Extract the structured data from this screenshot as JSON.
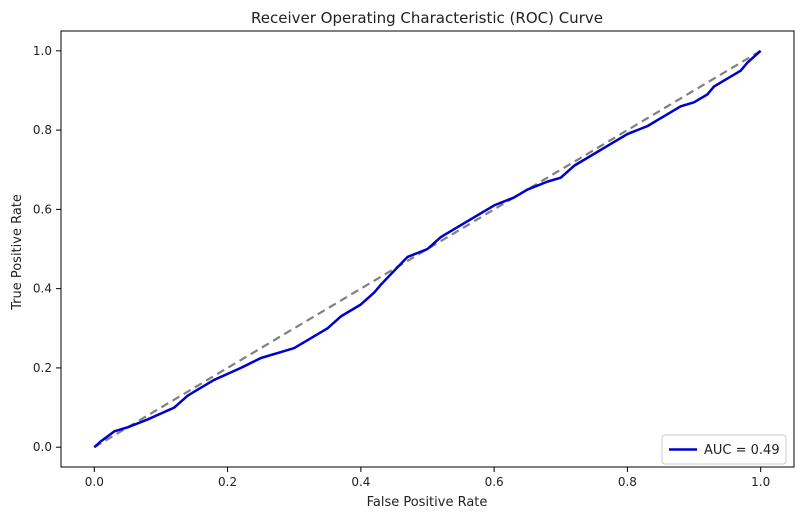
{
  "chart_data": {
    "type": "line",
    "title": "Receiver Operating Characteristic (ROC) Curve",
    "xlabel": "False Positive Rate",
    "ylabel": "True Positive Rate",
    "xlim": [
      -0.05,
      1.05
    ],
    "ylim": [
      -0.05,
      1.05
    ],
    "xticks": [
      "0.0",
      "0.2",
      "0.4",
      "0.6",
      "0.8",
      "1.0"
    ],
    "yticks": [
      "0.0",
      "0.2",
      "0.4",
      "0.6",
      "0.8",
      "1.0"
    ],
    "grid": false,
    "legend_position": "bottom-right",
    "series": [
      {
        "name": "AUC = 0.49",
        "color": "#0000cc",
        "style": "solid",
        "x": [
          0.0,
          0.01,
          0.03,
          0.05,
          0.08,
          0.1,
          0.12,
          0.14,
          0.16,
          0.18,
          0.2,
          0.22,
          0.25,
          0.28,
          0.3,
          0.32,
          0.35,
          0.37,
          0.4,
          0.42,
          0.43,
          0.45,
          0.47,
          0.5,
          0.52,
          0.55,
          0.58,
          0.6,
          0.63,
          0.65,
          0.68,
          0.7,
          0.72,
          0.75,
          0.78,
          0.8,
          0.83,
          0.85,
          0.88,
          0.9,
          0.92,
          0.93,
          0.95,
          0.97,
          0.98,
          1.0
        ],
        "y": [
          0.0,
          0.015,
          0.04,
          0.05,
          0.07,
          0.085,
          0.1,
          0.13,
          0.15,
          0.17,
          0.185,
          0.2,
          0.225,
          0.24,
          0.25,
          0.27,
          0.3,
          0.33,
          0.36,
          0.39,
          0.41,
          0.445,
          0.48,
          0.5,
          0.53,
          0.56,
          0.59,
          0.61,
          0.63,
          0.65,
          0.67,
          0.68,
          0.71,
          0.74,
          0.77,
          0.79,
          0.81,
          0.83,
          0.86,
          0.87,
          0.89,
          0.91,
          0.93,
          0.95,
          0.97,
          1.0
        ]
      },
      {
        "name": "",
        "color": "#808080",
        "style": "dashed",
        "x": [
          0.0,
          1.0
        ],
        "y": [
          0.0,
          1.0
        ]
      }
    ]
  }
}
